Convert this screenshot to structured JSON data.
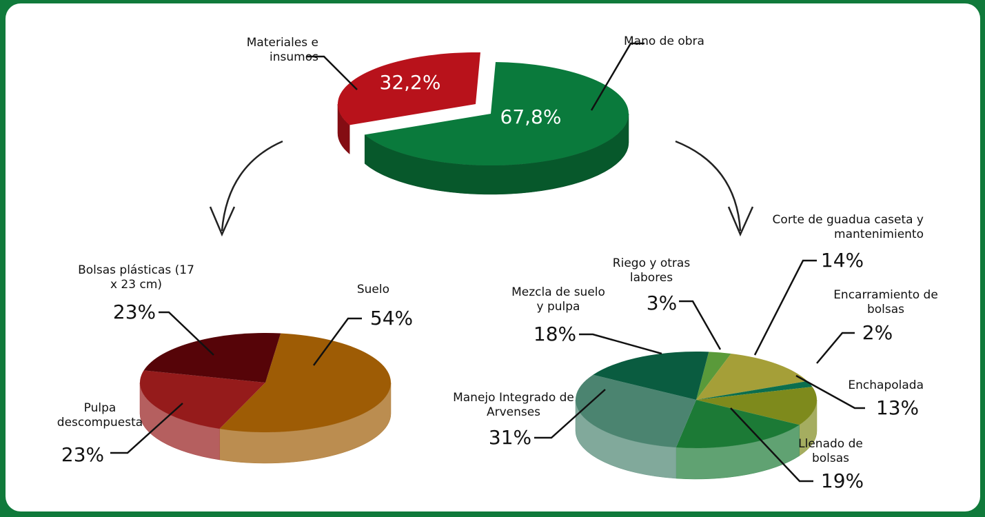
{
  "chart_data": [
    {
      "type": "pie",
      "categories": [
        "Mano de obra",
        "Materiales e insumos"
      ],
      "values": [
        67.8,
        32.2
      ],
      "value_labels": [
        "67,8%",
        "32,2%"
      ],
      "colors": [
        "#0a7a3c",
        "#b8121b"
      ]
    },
    {
      "type": "pie",
      "categories": [
        "Suelo",
        "Pulpa descompuesta",
        "Bolsas plásticas (17 x 23 cm)"
      ],
      "values": [
        54,
        23,
        23
      ],
      "value_labels": [
        "54%",
        "23%",
        "23%"
      ],
      "colors": [
        "#9e5c05",
        "#951b1b",
        "#560408"
      ]
    },
    {
      "type": "pie",
      "categories": [
        "Riego y otras labores",
        "Corte de guadua caseta y mantenimiento",
        "Encarramiento de bolsas",
        "Enchapolada",
        "Llenado de bolsas",
        "Manejo Integrado de Arvenses",
        "Mezcla de suelo y pulpa"
      ],
      "values": [
        3,
        14,
        2,
        13,
        19,
        31,
        18
      ],
      "value_labels": [
        "3%",
        "14%",
        "2%",
        "13%",
        "19%",
        "31%",
        "18%"
      ],
      "colors": [
        "#5a9a3a",
        "#a59f38",
        "#0b6e4e",
        "#7e8a1c",
        "#1c7a36",
        "#4b8470",
        "#0a5c40"
      ]
    }
  ]
}
